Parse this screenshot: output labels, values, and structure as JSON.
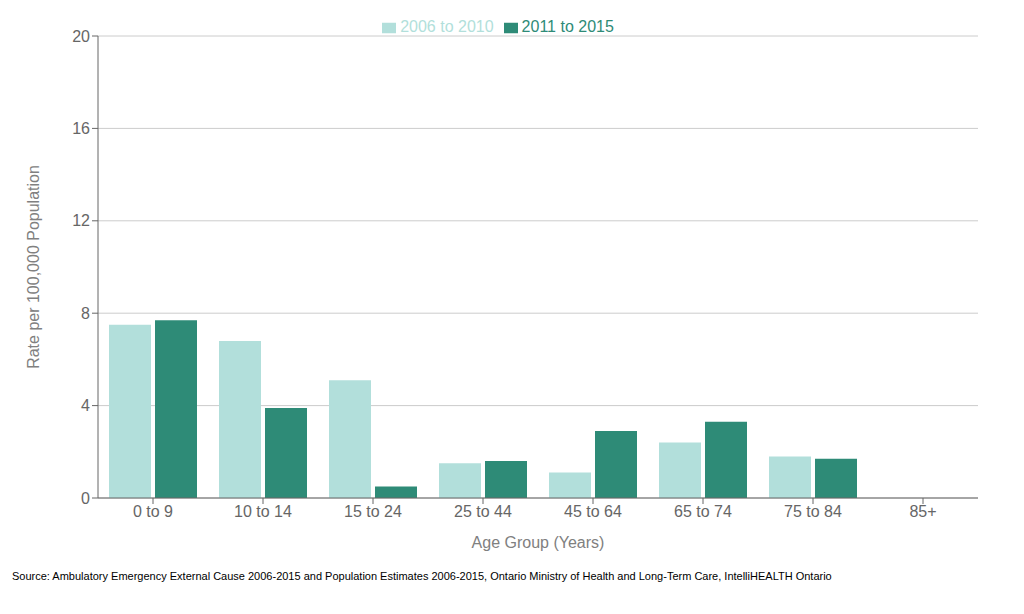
{
  "chart_data": {
    "type": "bar",
    "categories": [
      "0 to 9",
      "10 to 14",
      "15 to 24",
      "25 to 44",
      "45 to 64",
      "65 to 74",
      "75 to 84",
      "85+"
    ],
    "series": [
      {
        "name": "2006 to 2010",
        "color": "#b2dfdb",
        "values": [
          7.5,
          6.8,
          5.1,
          1.5,
          1.1,
          2.4,
          1.8,
          0.0
        ]
      },
      {
        "name": "2011 to 2015",
        "color": "#2e8b77",
        "values": [
          7.7,
          3.9,
          0.5,
          1.6,
          2.9,
          3.3,
          1.7,
          0.0
        ]
      }
    ],
    "xlabel": "Age Group (Years)",
    "ylabel": "Rate per 100,000 Population",
    "ylim": [
      0,
      20
    ],
    "yticks": [
      0,
      4,
      8,
      12,
      16,
      20
    ],
    "grid": true,
    "legend": "top",
    "annotations": [
      "Source: Ambulatory Emergency External Cause 2006-2015 and Population Estimates 2006-2015, Ontario Ministry of Health and Long-Term Care, IntelliHEALTH Ontario"
    ]
  }
}
